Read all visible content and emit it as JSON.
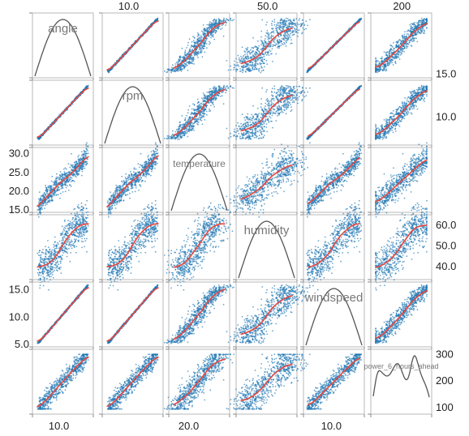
{
  "chart_data": {
    "type": "scatter",
    "variables": [
      "angle",
      "rpm",
      "temperature",
      "humidity",
      "windspeed",
      "power_6_hours_ahead"
    ],
    "ranges": {
      "angle": [
        7,
        14
      ],
      "rpm": [
        7,
        14
      ],
      "temperature": [
        15,
        31
      ],
      "humidity": [
        35,
        64
      ],
      "windspeed": [
        5,
        16
      ],
      "power_6_hours_ahead": [
        85,
        310
      ]
    },
    "tick_labels": {
      "top": [
        {
          "column": "rpm",
          "value": 10.0,
          "label": "10.0"
        },
        {
          "column": "humidity",
          "value": 50.0,
          "label": "50.0"
        },
        {
          "column": "power_6_hours_ahead",
          "value": 200,
          "label": "200"
        }
      ],
      "bottom": [
        {
          "column": "angle",
          "value": 10.0,
          "label": "10.0"
        },
        {
          "column": "temperature",
          "value": 20.0,
          "label": "20.0"
        },
        {
          "column": "windspeed",
          "value": 10.0,
          "label": "10.0"
        }
      ],
      "left": [
        {
          "row": "temperature",
          "value": 30.0,
          "label": "30.0"
        },
        {
          "row": "temperature",
          "value": 25.0,
          "label": "25.0"
        },
        {
          "row": "temperature",
          "value": 20.0,
          "label": "20.0"
        },
        {
          "row": "temperature",
          "value": 15.0,
          "label": "15.0"
        },
        {
          "row": "windspeed",
          "value": 15.0,
          "label": "15.0"
        },
        {
          "row": "windspeed",
          "value": 10.0,
          "label": "10.0"
        },
        {
          "row": "windspeed",
          "value": 5.0,
          "label": "5.0"
        }
      ],
      "right": [
        {
          "row": "rpm",
          "value": 15.0,
          "label": "15.0"
        },
        {
          "row": "rpm",
          "value": 10.0,
          "label": "10.0"
        },
        {
          "row": "humidity",
          "value": 60.0,
          "label": "60.0"
        },
        {
          "row": "humidity",
          "value": 50.0,
          "label": "50.0"
        },
        {
          "row": "humidity",
          "value": 40.0,
          "label": "40.0"
        },
        {
          "row": "power_6_hours_ahead",
          "value": 300,
          "label": "300"
        },
        {
          "row": "power_6_hours_ahead",
          "value": 200,
          "label": "200"
        },
        {
          "row": "power_6_hours_ahead",
          "value": 100,
          "label": "100"
        }
      ]
    },
    "points_per_panel": 700,
    "grid": false,
    "legend": "none",
    "colors": {
      "points": "#1f77b4",
      "fit_line": "#e8473f",
      "density": "#555555",
      "frame": "#b8b8b8",
      "diagonal_label": "#777777"
    }
  }
}
